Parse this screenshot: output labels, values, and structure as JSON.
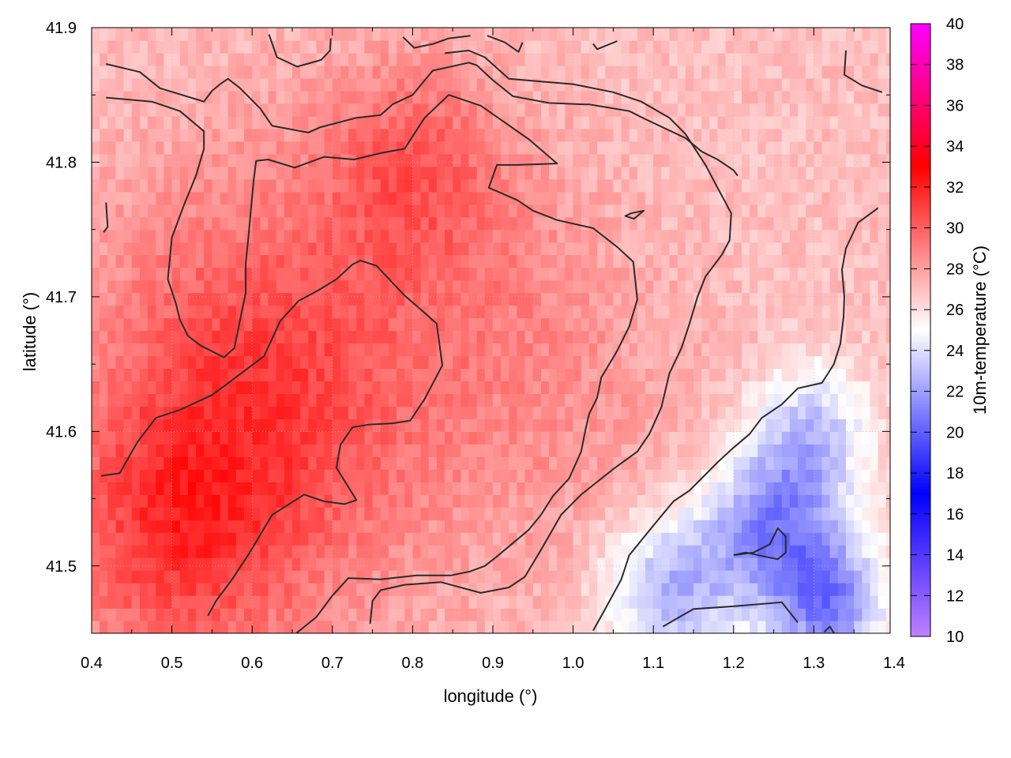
{
  "chart_data": {
    "type": "heatmap",
    "xlabel": "longitude (°)",
    "ylabel": "latitude (°)",
    "colorbar_label": "10m-temperature (°C)",
    "xlim": [
      0.4,
      1.4
    ],
    "ylim": [
      41.45,
      41.9
    ],
    "xticks": [
      {
        "value": 0.4,
        "label": "0.4"
      },
      {
        "value": 0.5,
        "label": "0.5"
      },
      {
        "value": 0.6,
        "label": "0.6"
      },
      {
        "value": 0.7,
        "label": "0.7"
      },
      {
        "value": 0.8,
        "label": "0.8"
      },
      {
        "value": 0.9,
        "label": "0.9"
      },
      {
        "value": 1.0,
        "label": "1.0"
      },
      {
        "value": 1.1,
        "label": "1.1"
      },
      {
        "value": 1.2,
        "label": "1.2"
      },
      {
        "value": 1.3,
        "label": "1.3"
      },
      {
        "value": 1.4,
        "label": "1.4"
      }
    ],
    "yticks": [
      {
        "value": 41.5,
        "label": "41.5"
      },
      {
        "value": 41.6,
        "label": "41.6"
      },
      {
        "value": 41.7,
        "label": "41.7"
      },
      {
        "value": 41.8,
        "label": "41.8"
      },
      {
        "value": 41.9,
        "label": "41.9"
      }
    ],
    "colorbar": {
      "range": [
        10,
        40
      ],
      "ticks": [
        {
          "value": 10,
          "label": "10"
        },
        {
          "value": 12,
          "label": "12"
        },
        {
          "value": 14,
          "label": "14"
        },
        {
          "value": 16,
          "label": "16"
        },
        {
          "value": 18,
          "label": "18"
        },
        {
          "value": 20,
          "label": "20"
        },
        {
          "value": 22,
          "label": "22"
        },
        {
          "value": 24,
          "label": "24"
        },
        {
          "value": 26,
          "label": "26"
        },
        {
          "value": 28,
          "label": "28"
        },
        {
          "value": 30,
          "label": "30"
        },
        {
          "value": 32,
          "label": "32"
        },
        {
          "value": 34,
          "label": "34"
        },
        {
          "value": 36,
          "label": "36"
        },
        {
          "value": 38,
          "label": "38"
        },
        {
          "value": 40,
          "label": "40"
        }
      ],
      "stops": [
        {
          "value": 10,
          "color": "#c080ff"
        },
        {
          "value": 17,
          "color": "#0000ff"
        },
        {
          "value": 25,
          "color": "#ffffff"
        },
        {
          "value": 33,
          "color": "#ff0000"
        },
        {
          "value": 40,
          "color": "#ff00ff"
        }
      ]
    },
    "grid": true,
    "temperature_centers": [
      {
        "lon": 0.62,
        "lat": 41.63,
        "temp": 31.0,
        "spread": 0.16
      },
      {
        "lon": 0.5,
        "lat": 41.52,
        "temp": 30.0,
        "spread": 0.1
      },
      {
        "lon": 0.8,
        "lat": 41.8,
        "temp": 29.5,
        "spread": 0.08
      },
      {
        "lon": 0.92,
        "lat": 41.72,
        "temp": 28.0,
        "spread": 0.1
      },
      {
        "lon": 1.0,
        "lat": 41.6,
        "temp": 28.0,
        "spread": 0.12
      },
      {
        "lon": 1.12,
        "lat": 41.48,
        "temp": 22.5,
        "spread": 0.06
      },
      {
        "lon": 1.25,
        "lat": 41.53,
        "temp": 21.5,
        "spread": 0.06
      },
      {
        "lon": 1.32,
        "lat": 41.47,
        "temp": 21.5,
        "spread": 0.05
      },
      {
        "lon": 1.3,
        "lat": 41.6,
        "temp": 23.5,
        "spread": 0.05
      }
    ],
    "temperature_background": 27.0,
    "contours": [
      {
        "name": "contour-a",
        "points": [
          [
            0.418,
            41.873
          ],
          [
            0.46,
            41.867
          ],
          [
            0.485,
            41.855
          ],
          [
            0.54,
            41.845
          ],
          [
            0.55,
            41.853
          ],
          [
            0.56,
            41.858
          ],
          [
            0.57,
            41.862
          ],
          [
            0.585,
            41.855
          ],
          [
            0.61,
            41.84
          ],
          [
            0.625,
            41.827
          ],
          [
            0.67,
            41.822
          ],
          [
            0.685,
            41.826
          ],
          [
            0.73,
            41.833
          ],
          [
            0.76,
            41.835
          ],
          [
            0.775,
            41.843
          ],
          [
            0.8,
            41.85
          ],
          [
            0.825,
            41.868
          ],
          [
            0.87,
            41.874
          ],
          [
            0.88,
            41.872
          ],
          [
            0.9,
            41.861
          ],
          [
            0.925,
            41.849
          ],
          [
            0.97,
            41.844
          ],
          [
            1.015,
            41.843
          ],
          [
            1.02,
            41.843
          ],
          [
            1.07,
            41.838
          ],
          [
            1.09,
            41.832
          ],
          [
            1.14,
            41.818
          ],
          [
            1.16,
            41.808
          ],
          [
            1.18,
            41.802
          ],
          [
            1.2,
            41.794
          ],
          [
            1.205,
            41.79
          ]
        ]
      },
      {
        "name": "contour-b",
        "points": [
          [
            0.418,
            41.848
          ],
          [
            0.475,
            41.845
          ],
          [
            0.51,
            41.838
          ],
          [
            0.54,
            41.823
          ],
          [
            0.54,
            41.81
          ],
          [
            0.53,
            41.79
          ],
          [
            0.515,
            41.768
          ],
          [
            0.5,
            41.744
          ],
          [
            0.495,
            41.713
          ],
          [
            0.505,
            41.695
          ],
          [
            0.51,
            41.683
          ],
          [
            0.52,
            41.671
          ],
          [
            0.535,
            41.664
          ],
          [
            0.565,
            41.655
          ],
          [
            0.578,
            41.662
          ],
          [
            0.585,
            41.683
          ],
          [
            0.592,
            41.703
          ],
          [
            0.592,
            41.725
          ],
          [
            0.595,
            41.742
          ],
          [
            0.602,
            41.787
          ],
          [
            0.605,
            41.801
          ],
          [
            0.62,
            41.802
          ],
          [
            0.653,
            41.796
          ],
          [
            0.69,
            41.804
          ],
          [
            0.727,
            41.802
          ],
          [
            0.762,
            41.807
          ],
          [
            0.79,
            41.81
          ],
          [
            0.815,
            41.833
          ],
          [
            0.845,
            41.85
          ],
          [
            0.885,
            41.842
          ],
          [
            0.945,
            41.817
          ],
          [
            0.98,
            41.799
          ],
          [
            0.93,
            41.798
          ],
          [
            0.905,
            41.798
          ],
          [
            0.895,
            41.781
          ],
          [
            0.93,
            41.772
          ],
          [
            0.95,
            41.764
          ],
          [
            0.98,
            41.757
          ],
          [
            1.025,
            41.751
          ],
          [
            1.055,
            41.737
          ],
          [
            1.075,
            41.726
          ],
          [
            1.08,
            41.698
          ],
          [
            1.07,
            41.678
          ],
          [
            1.055,
            41.66
          ],
          [
            1.035,
            41.64
          ],
          [
            1.03,
            41.625
          ],
          [
            1.02,
            41.613
          ],
          [
            1.015,
            41.6
          ],
          [
            1.01,
            41.585
          ],
          [
            0.995,
            41.565
          ],
          [
            0.975,
            41.552
          ],
          [
            0.96,
            41.538
          ],
          [
            0.945,
            41.527
          ],
          [
            0.925,
            41.517
          ],
          [
            0.905,
            41.507
          ],
          [
            0.89,
            41.5
          ],
          [
            0.872,
            41.496
          ],
          [
            0.848,
            41.493
          ],
          [
            0.805,
            41.493
          ],
          [
            0.76,
            41.49
          ],
          [
            0.72,
            41.491
          ],
          [
            0.7,
            41.478
          ],
          [
            0.68,
            41.462
          ],
          [
            0.655,
            41.45
          ]
        ]
      },
      {
        "name": "contour-c",
        "points": [
          [
            0.412,
            41.567
          ],
          [
            0.435,
            41.569
          ],
          [
            0.457,
            41.592
          ],
          [
            0.48,
            41.61
          ],
          [
            0.51,
            41.616
          ],
          [
            0.55,
            41.627
          ],
          [
            0.575,
            41.638
          ],
          [
            0.615,
            41.656
          ],
          [
            0.635,
            41.682
          ],
          [
            0.658,
            41.697
          ],
          [
            0.683,
            41.705
          ],
          [
            0.705,
            41.713
          ],
          [
            0.725,
            41.724
          ],
          [
            0.735,
            41.727
          ],
          [
            0.755,
            41.723
          ],
          [
            0.79,
            41.701
          ],
          [
            0.815,
            41.688
          ],
          [
            0.83,
            41.68
          ],
          [
            0.837,
            41.649
          ],
          [
            0.815,
            41.624
          ],
          [
            0.797,
            41.608
          ],
          [
            0.775,
            41.606
          ],
          [
            0.745,
            41.605
          ],
          [
            0.725,
            41.603
          ],
          [
            0.71,
            41.59
          ],
          [
            0.705,
            41.573
          ],
          [
            0.73,
            41.549
          ],
          [
            0.715,
            41.546
          ],
          [
            0.69,
            41.548
          ],
          [
            0.665,
            41.553
          ],
          [
            0.625,
            41.538
          ],
          [
            0.605,
            41.518
          ],
          [
            0.595,
            41.508
          ],
          [
            0.575,
            41.49
          ],
          [
            0.555,
            41.474
          ],
          [
            0.545,
            41.463
          ]
        ]
      },
      {
        "name": "contour-d",
        "points": [
          [
            0.747,
            41.457
          ],
          [
            0.75,
            41.474
          ],
          [
            0.76,
            41.482
          ],
          [
            0.79,
            41.486
          ],
          [
            0.835,
            41.488
          ],
          [
            0.885,
            41.48
          ],
          [
            0.92,
            41.484
          ],
          [
            0.94,
            41.492
          ],
          [
            0.96,
            41.512
          ],
          [
            0.985,
            41.538
          ],
          [
            1.01,
            41.553
          ],
          [
            1.05,
            41.572
          ],
          [
            1.08,
            41.585
          ],
          [
            1.095,
            41.598
          ],
          [
            1.11,
            41.618
          ],
          [
            1.12,
            41.643
          ],
          [
            1.135,
            41.662
          ],
          [
            1.145,
            41.68
          ],
          [
            1.155,
            41.7
          ],
          [
            1.165,
            41.715
          ],
          [
            1.185,
            41.731
          ],
          [
            1.195,
            41.742
          ],
          [
            1.197,
            41.762
          ],
          [
            1.19,
            41.77
          ],
          [
            1.18,
            41.781
          ],
          [
            1.165,
            41.798
          ],
          [
            1.14,
            41.821
          ],
          [
            1.12,
            41.833
          ],
          [
            1.085,
            41.845
          ],
          [
            1.05,
            41.852
          ],
          [
            1.0,
            41.858
          ],
          [
            0.96,
            41.86
          ],
          [
            0.92,
            41.862
          ],
          [
            0.89,
            41.878
          ],
          [
            0.87,
            41.883
          ],
          [
            0.84,
            41.881
          ]
        ]
      },
      {
        "name": "contour-e",
        "points": [
          [
            1.025,
            41.452
          ],
          [
            1.04,
            41.468
          ],
          [
            1.06,
            41.49
          ],
          [
            1.07,
            41.508
          ],
          [
            1.1,
            41.53
          ],
          [
            1.125,
            41.548
          ],
          [
            1.145,
            41.556
          ],
          [
            1.16,
            41.565
          ],
          [
            1.18,
            41.577
          ],
          [
            1.2,
            41.588
          ],
          [
            1.22,
            41.598
          ],
          [
            1.235,
            41.61
          ],
          [
            1.26,
            41.62
          ],
          [
            1.28,
            41.632
          ],
          [
            1.31,
            41.636
          ],
          [
            1.325,
            41.65
          ],
          [
            1.333,
            41.665
          ],
          [
            1.337,
            41.685
          ],
          [
            1.338,
            41.7
          ],
          [
            1.335,
            41.72
          ],
          [
            1.34,
            41.736
          ],
          [
            1.355,
            41.755
          ],
          [
            1.38,
            41.766
          ]
        ]
      },
      {
        "name": "contour-f",
        "points": [
          [
            1.112,
            41.455
          ],
          [
            1.15,
            41.468
          ],
          [
            1.2,
            41.47
          ],
          [
            1.26,
            41.473
          ],
          [
            1.28,
            41.458
          ]
        ]
      },
      {
        "name": "contour-g",
        "points": [
          [
            1.2,
            41.508
          ],
          [
            1.215,
            41.51
          ],
          [
            1.255,
            41.505
          ],
          [
            1.265,
            41.51
          ],
          [
            1.265,
            41.522
          ],
          [
            1.255,
            41.528
          ],
          [
            1.245,
            41.516
          ],
          [
            1.225,
            41.51
          ],
          [
            1.2,
            41.508
          ]
        ]
      },
      {
        "name": "contour-h",
        "points": [
          [
            1.072,
            41.762
          ],
          [
            1.088,
            41.764
          ],
          [
            1.076,
            41.758
          ],
          [
            1.065,
            41.76
          ],
          [
            1.072,
            41.762
          ]
        ]
      },
      {
        "name": "contour-i",
        "points": [
          [
            0.621,
            41.895
          ],
          [
            0.631,
            41.878
          ],
          [
            0.656,
            41.871
          ],
          [
            0.686,
            41.876
          ],
          [
            0.697,
            41.883
          ],
          [
            0.698,
            41.892
          ]
        ]
      },
      {
        "name": "contour-j",
        "points": [
          [
            0.788,
            41.893
          ],
          [
            0.802,
            41.885
          ],
          [
            0.826,
            41.888
          ],
          [
            0.845,
            41.892
          ],
          [
            0.872,
            41.894
          ]
        ]
      },
      {
        "name": "contour-k",
        "points": [
          [
            0.893,
            41.894
          ],
          [
            0.915,
            41.889
          ],
          [
            0.932,
            41.882
          ],
          [
            0.937,
            41.889
          ]
        ]
      },
      {
        "name": "contour-l",
        "points": [
          [
            1.025,
            41.888
          ],
          [
            1.03,
            41.884
          ],
          [
            1.055,
            41.89
          ]
        ]
      },
      {
        "name": "contour-m",
        "points": [
          [
            1.34,
            41.883
          ],
          [
            1.338,
            41.865
          ],
          [
            1.36,
            41.857
          ],
          [
            1.385,
            41.852
          ]
        ]
      },
      {
        "name": "contour-n",
        "points": [
          [
            0.418,
            41.77
          ],
          [
            0.42,
            41.752
          ],
          [
            0.415,
            41.748
          ]
        ]
      },
      {
        "name": "contour-o",
        "points": [
          [
            1.313,
            41.451
          ],
          [
            1.32,
            41.455
          ],
          [
            1.325,
            41.45
          ]
        ]
      }
    ]
  }
}
